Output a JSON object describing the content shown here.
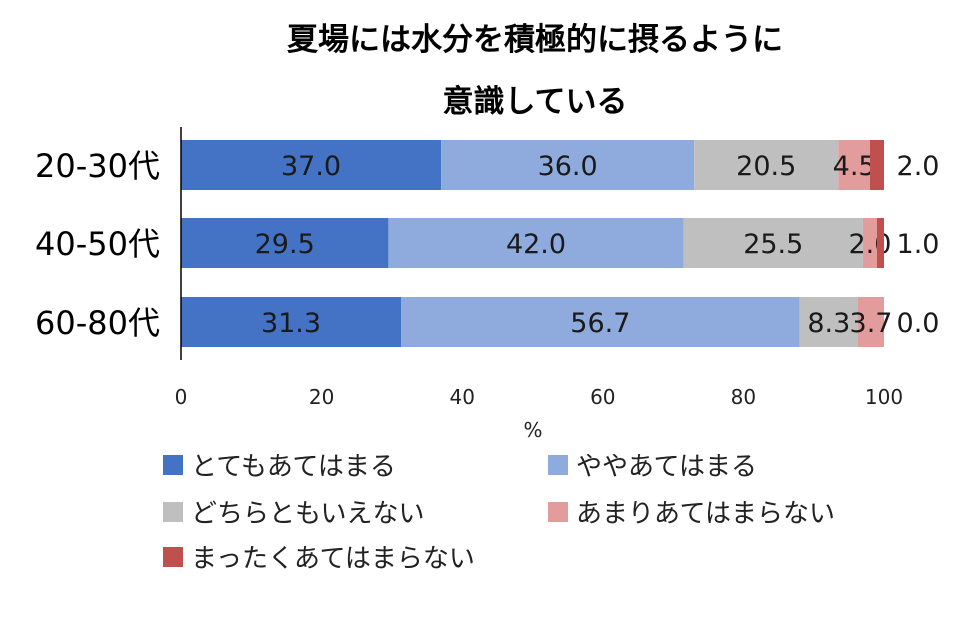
{
  "chart_data": {
    "type": "bar",
    "orientation": "horizontal",
    "stacked": true,
    "title": [
      "夏場には水分を積極的に摂るように",
      "意識している"
    ],
    "xlabel": "%",
    "ylabel": "",
    "xlim": [
      0,
      100
    ],
    "xticks": [
      "0",
      "20",
      "40",
      "60",
      "80",
      "100"
    ],
    "grid": false,
    "legend_position": "bottom",
    "categories": [
      "20-30代",
      "40-50代",
      "60-80代"
    ],
    "series": [
      {
        "name": "とてもあてはまる",
        "color": "#4472C4",
        "values": [
          37.0,
          29.5,
          31.3
        ],
        "labels": [
          "37.0",
          "29.5",
          "31.3"
        ]
      },
      {
        "name": "ややあてはまる",
        "color": "#8FAADC",
        "values": [
          36.0,
          42.0,
          56.7
        ],
        "labels": [
          "36.0",
          "42.0",
          "56.7"
        ]
      },
      {
        "name": "どちらともいえない",
        "color": "#BFBFBF",
        "values": [
          20.5,
          25.5,
          8.3
        ],
        "labels": [
          "20.5",
          "25.5",
          "8.3"
        ]
      },
      {
        "name": "あまりあてはまらない",
        "color": "#E39C9C",
        "values": [
          4.5,
          2.0,
          3.7
        ],
        "labels": [
          "4.5",
          "2.0",
          "3.7"
        ]
      },
      {
        "name": "まったくあてはまらない",
        "color": "#C0504D",
        "values": [
          2.0,
          1.0,
          0.0
        ],
        "labels": [
          "2.0",
          "1.0",
          "0.0"
        ]
      }
    ]
  }
}
